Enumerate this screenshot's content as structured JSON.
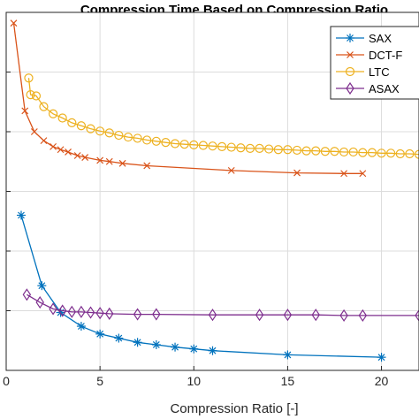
{
  "chart_data": {
    "type": "line",
    "title": "Compression Time Based on Compression Ratio",
    "xlabel": "Compression Ratio [-]",
    "ylabel": "",
    "xlim": [
      0,
      22
    ],
    "ylim": [
      0,
      6
    ],
    "x_ticks": [
      0,
      5,
      10,
      15,
      20
    ],
    "y_ticks": [
      0,
      1,
      2,
      3,
      4,
      5,
      6
    ],
    "grid": true,
    "legend_position": "top-right",
    "series": [
      {
        "name": "SAX",
        "color": "#0072BD",
        "marker": "asterisk",
        "x": [
          0.8,
          1.9,
          2.9,
          4.0,
          5.0,
          6.0,
          7.0,
          8.0,
          9.0,
          10.0,
          11.0,
          15.0,
          20.0
        ],
        "y": [
          2.6,
          1.42,
          0.97,
          0.74,
          0.61,
          0.54,
          0.47,
          0.43,
          0.39,
          0.36,
          0.33,
          0.26,
          0.22
        ]
      },
      {
        "name": "DCT-F",
        "color": "#D95319",
        "marker": "x",
        "x": [
          0.4,
          1.0,
          1.5,
          2.0,
          2.5,
          2.9,
          3.3,
          3.8,
          4.2,
          5.0,
          5.5,
          6.2,
          7.5,
          12.0,
          15.5,
          18.0,
          19.0
        ],
        "y": [
          5.82,
          4.35,
          4.0,
          3.85,
          3.75,
          3.7,
          3.66,
          3.6,
          3.57,
          3.52,
          3.5,
          3.47,
          3.43,
          3.35,
          3.31,
          3.3,
          3.3
        ]
      },
      {
        "name": "LTC",
        "color": "#EDB120",
        "marker": "circle",
        "x": [
          1.2,
          1.3,
          1.6,
          2.0,
          2.5,
          3.0,
          3.5,
          4.0,
          4.5,
          5.0,
          5.5,
          6.0,
          6.5,
          7.0,
          7.5,
          8.0,
          8.5,
          9.0,
          9.5,
          10.0,
          10.5,
          11.0,
          11.5,
          12.0,
          12.5,
          13.0,
          13.5,
          14.0,
          14.5,
          15.0,
          15.5,
          16.0,
          16.5,
          17.0,
          17.5,
          18.0,
          18.5,
          19.0,
          19.5,
          20.0,
          20.5,
          21.0,
          21.5,
          22.0
        ],
        "y": [
          4.9,
          4.62,
          4.6,
          4.42,
          4.3,
          4.23,
          4.15,
          4.1,
          4.05,
          4.01,
          3.98,
          3.94,
          3.91,
          3.89,
          3.86,
          3.84,
          3.82,
          3.8,
          3.79,
          3.78,
          3.77,
          3.76,
          3.75,
          3.74,
          3.73,
          3.72,
          3.72,
          3.71,
          3.7,
          3.7,
          3.69,
          3.68,
          3.68,
          3.67,
          3.67,
          3.66,
          3.66,
          3.65,
          3.65,
          3.64,
          3.64,
          3.63,
          3.63,
          3.62
        ]
      },
      {
        "name": "ASAX",
        "color": "#7E2F8E",
        "marker": "diamond",
        "x": [
          1.1,
          1.8,
          2.5,
          3.0,
          3.5,
          4.0,
          4.5,
          5.0,
          5.5,
          7.0,
          8.0,
          11.0,
          13.5,
          15.0,
          16.5,
          18.0,
          19.0,
          22.0
        ],
        "y": [
          1.27,
          1.14,
          1.03,
          1.0,
          0.98,
          0.98,
          0.97,
          0.96,
          0.95,
          0.94,
          0.94,
          0.93,
          0.93,
          0.93,
          0.93,
          0.92,
          0.92,
          0.92
        ]
      }
    ]
  }
}
